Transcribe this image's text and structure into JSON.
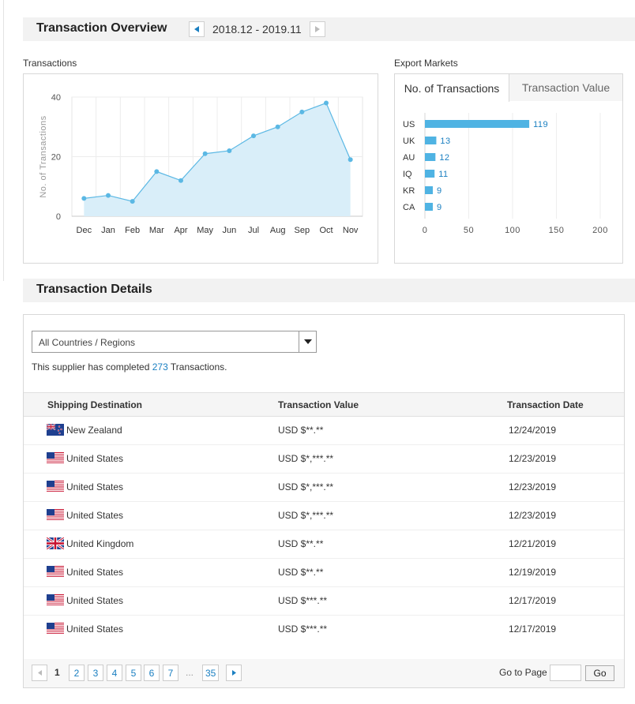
{
  "overview": {
    "title": "Transaction Overview",
    "date_range": "2018.12 - 2019.11",
    "prev_icon": "caret-left-icon",
    "next_icon": "caret-right-icon"
  },
  "transactions_label": "Transactions",
  "export_label": "Export Markets",
  "tabs": [
    {
      "label": "No. of Transactions",
      "active": true
    },
    {
      "label": "Transaction Value",
      "active": false
    }
  ],
  "chart_data": [
    {
      "type": "area",
      "title": "",
      "ylabel": "No. of Transactions",
      "xlabel": "",
      "categories": [
        "Dec",
        "Jan",
        "Feb",
        "Mar",
        "Apr",
        "May",
        "Jun",
        "Jul",
        "Aug",
        "Sep",
        "Oct",
        "Nov"
      ],
      "values": [
        6,
        7,
        5,
        15,
        12,
        21,
        22,
        27,
        30,
        35,
        38,
        19
      ],
      "yticks": [
        "0",
        "20",
        "40"
      ],
      "ylim": [
        0,
        40
      ],
      "grid": true,
      "color": "#5bb8e4",
      "fill": "#d9eef9"
    },
    {
      "type": "bar",
      "orientation": "horizontal",
      "categories": [
        "US",
        "UK",
        "AU",
        "IQ",
        "KR",
        "CA"
      ],
      "values": [
        119,
        13,
        12,
        11,
        9,
        9
      ],
      "xticks": [
        "0",
        "50",
        "100",
        "150",
        "200"
      ],
      "xlim": [
        0,
        200
      ],
      "grid": true,
      "color": "#4fb3e3",
      "label_color": "#1a7fc1"
    }
  ],
  "details": {
    "title": "Transaction Details",
    "filter_value": "All Countries / Regions",
    "filter_icon": "triangle-down-icon",
    "summary_prefix": "This supplier has completed ",
    "summary_count": "273",
    "summary_suffix": " Transactions.",
    "columns": [
      "Shipping Destination",
      "Transaction Value",
      "Transaction Date"
    ],
    "rows": [
      {
        "flag": "nz",
        "country": "New Zealand",
        "value": "USD $**.**",
        "date": "12/24/2019"
      },
      {
        "flag": "us",
        "country": "United States",
        "value": "USD $*,***.**",
        "date": "12/23/2019"
      },
      {
        "flag": "us",
        "country": "United States",
        "value": "USD $*,***.**",
        "date": "12/23/2019"
      },
      {
        "flag": "us",
        "country": "United States",
        "value": "USD $*,***.**",
        "date": "12/23/2019"
      },
      {
        "flag": "uk",
        "country": "United Kingdom",
        "value": "USD $**.**",
        "date": "12/21/2019"
      },
      {
        "flag": "us",
        "country": "United States",
        "value": "USD $**.**",
        "date": "12/19/2019"
      },
      {
        "flag": "us",
        "country": "United States",
        "value": "USD $***.**",
        "date": "12/17/2019"
      },
      {
        "flag": "us",
        "country": "United States",
        "value": "USD $***.**",
        "date": "12/17/2019"
      }
    ]
  },
  "pagination": {
    "current": "1",
    "pages": [
      "2",
      "3",
      "4",
      "5",
      "6",
      "7"
    ],
    "ellipsis": "...",
    "last": "35",
    "goto_label": "Go to Page",
    "go_label": "Go"
  }
}
